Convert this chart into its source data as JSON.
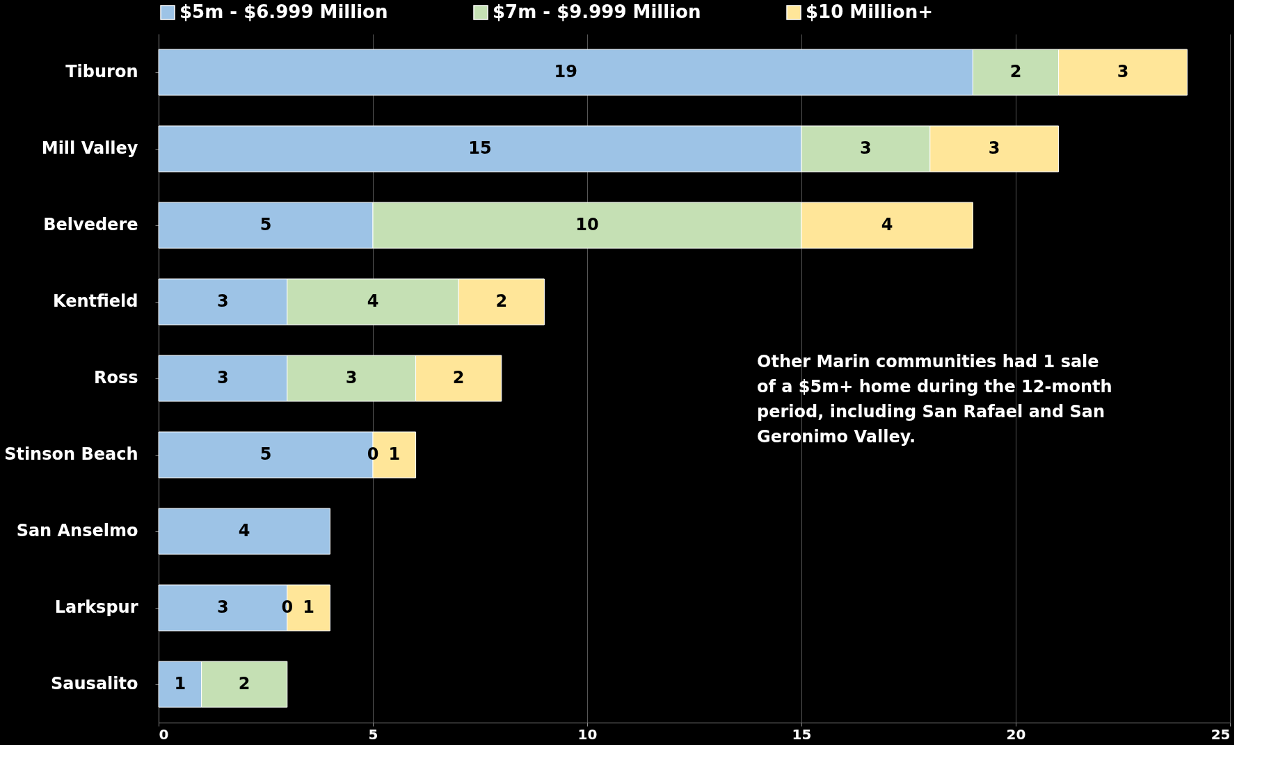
{
  "chart_data": {
    "type": "bar",
    "orientation": "horizontal",
    "stacked": true,
    "categories": [
      "Tiburon",
      "Mill Valley",
      "Belvedere",
      "Kentfield",
      "Ross",
      "Stinson Beach",
      "San Anselmo",
      "Larkspur",
      "Sausalito"
    ],
    "series": [
      {
        "name": "$5m - $6.999 Million",
        "color": "#9dc3e6",
        "values": [
          19,
          15,
          5,
          3,
          3,
          5,
          4,
          3,
          1
        ],
        "value_labels": [
          "19",
          "15",
          "5",
          "3",
          "3",
          "5",
          "4",
          "3",
          "1"
        ]
      },
      {
        "name": "$7m - $9.999 Million",
        "color": "#c5e0b4",
        "values": [
          2,
          3,
          10,
          4,
          3,
          0,
          0,
          0,
          2
        ],
        "value_labels": [
          "2",
          "3",
          "10",
          "4",
          "3",
          "0",
          null,
          "0",
          "2"
        ]
      },
      {
        "name": "$10 Million+",
        "color": "#ffe699",
        "values": [
          3,
          3,
          4,
          2,
          2,
          1,
          0,
          1,
          0
        ],
        "value_labels": [
          "3",
          "3",
          "4",
          "2",
          "2",
          "1",
          null,
          "1",
          null
        ]
      }
    ],
    "xlim": [
      0,
      25
    ],
    "xticks": [
      0,
      5,
      10,
      15,
      20,
      25
    ],
    "grid": "x",
    "legend": "top",
    "annotations": [
      "Other Marin communities had 1 sale of a $5m+ home during the 12-month period, including San Rafael and San Geronimo Valley."
    ]
  }
}
